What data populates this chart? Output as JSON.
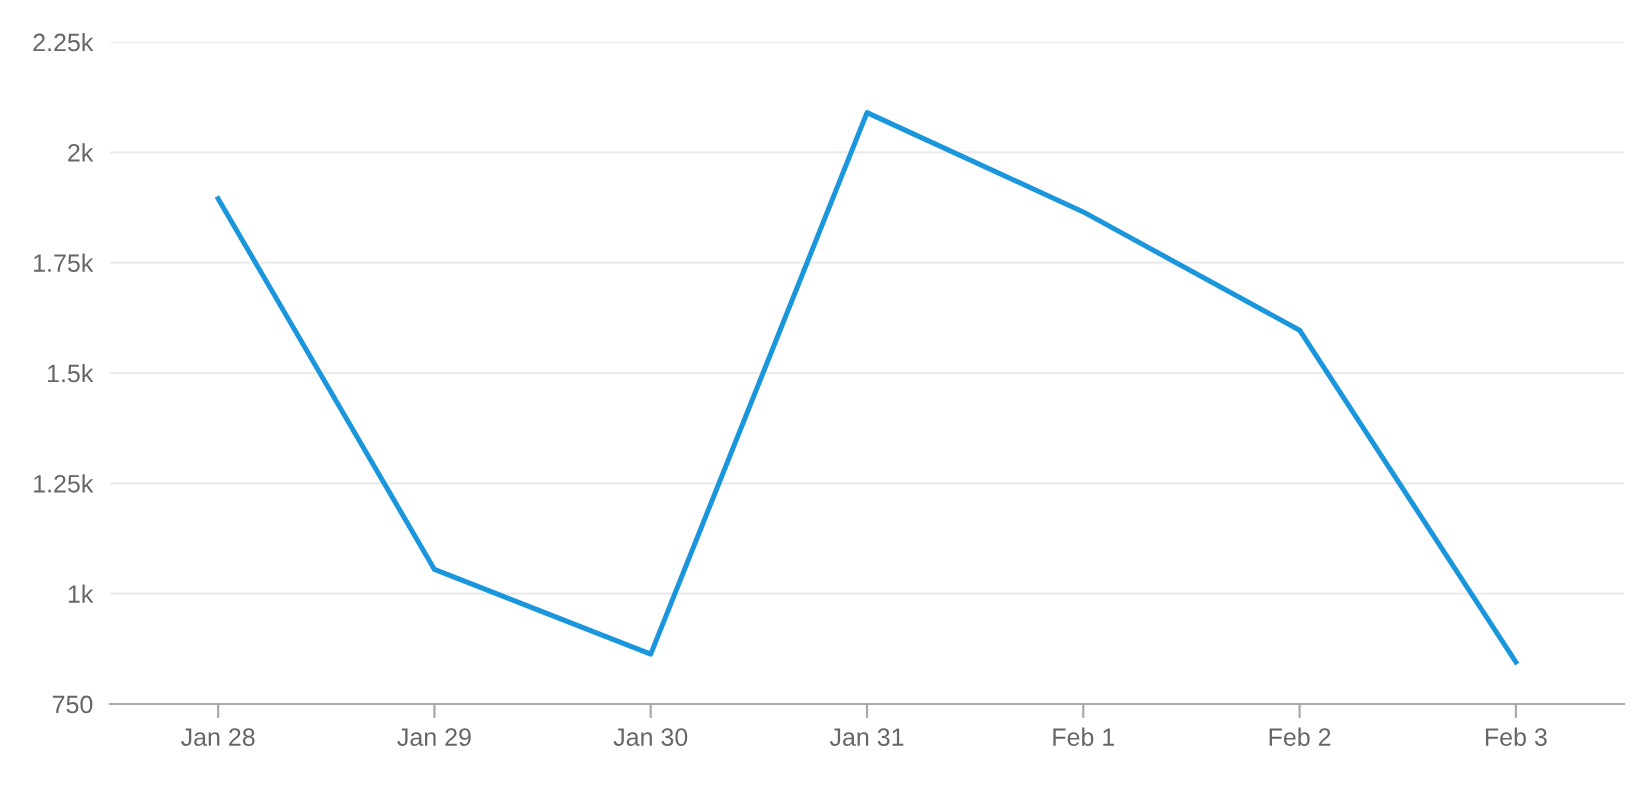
{
  "chart_data": {
    "type": "line",
    "categories": [
      "Jan 28",
      "Jan 29",
      "Jan 30",
      "Jan 31",
      "Feb 1",
      "Feb 2",
      "Feb 3"
    ],
    "series": [
      {
        "color": "#1a96dc",
        "values": [
          1895,
          1055,
          863,
          2090,
          1865,
          1597,
          845
        ]
      }
    ],
    "ylim": [
      750,
      2250
    ],
    "yticks": [
      750,
      {
        "value": 1000,
        "label": "1k"
      },
      {
        "value": 1250,
        "label": "1.25k"
      },
      {
        "value": 1500,
        "label": "1.5k"
      },
      {
        "value": 1750,
        "label": "1.75k"
      },
      {
        "value": 2000,
        "label": "2k"
      },
      {
        "value": 2250,
        "label": "2.25k"
      }
    ],
    "grid": "y",
    "marker": "none",
    "line_style": "solid"
  }
}
